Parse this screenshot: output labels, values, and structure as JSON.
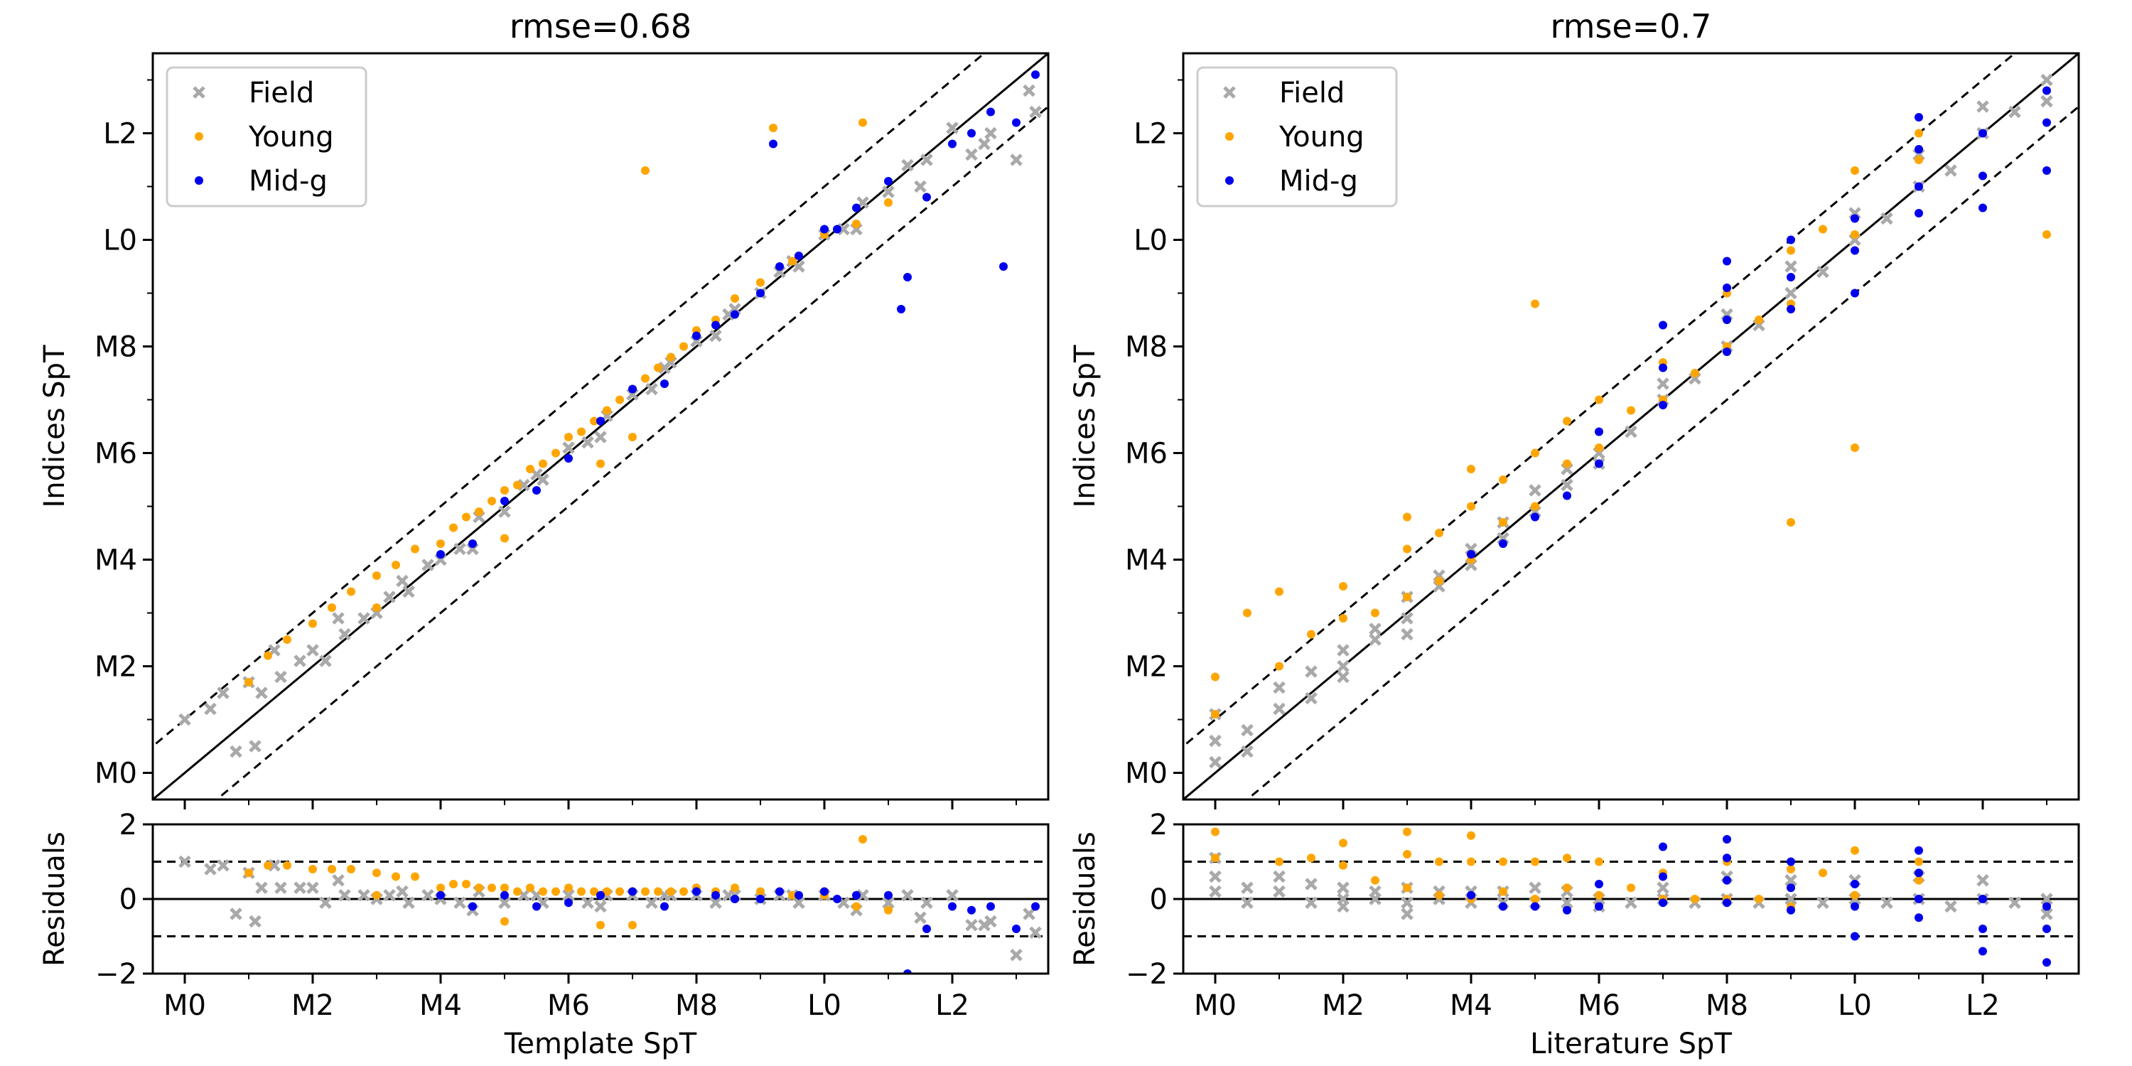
{
  "chart_data": [
    {
      "type": "scatter",
      "title": "rmse=0.68",
      "xlabel": "Template SpT",
      "ylabel": "Indices SpT",
      "residual_ylabel": "Residuals",
      "spt_min": -0.5,
      "spt_max": 13.5,
      "xlim": [
        -0.5,
        13.5
      ],
      "ylim": [
        -0.5,
        13.5
      ],
      "residual_ylim": [
        -2,
        2
      ],
      "ticks": [
        0,
        2,
        4,
        6,
        8,
        10,
        12
      ],
      "tick_labels": [
        "M0",
        "M2",
        "M4",
        "M6",
        "M8",
        "L0",
        "L2"
      ],
      "residual_ticks": [
        -2,
        0,
        2
      ],
      "residual_tick_labels": [
        "−2",
        "0",
        "2"
      ],
      "one_to_one_line": true,
      "band": 1,
      "legend": [
        "Field",
        "Young",
        "Mid-g"
      ],
      "legend_position": "top-left",
      "series": [
        {
          "name": "Field",
          "marker": "x",
          "color": "#a9a9a9",
          "x": [
            0.0,
            0.4,
            0.8,
            1.0,
            1.2,
            1.5,
            1.8,
            2.0,
            2.2,
            2.5,
            2.8,
            3.0,
            3.2,
            3.5,
            3.8,
            4.0,
            4.3,
            4.6,
            5.0,
            5.3,
            5.6,
            6.0,
            6.3,
            6.6,
            7.0,
            7.3,
            7.6,
            8.0,
            8.3,
            8.6,
            9.0,
            9.3,
            9.6,
            10.0,
            10.3,
            10.6,
            11.0,
            11.3,
            11.6,
            12.0,
            12.3,
            12.6,
            13.0,
            13.3,
            0.6,
            1.1,
            1.4,
            2.4,
            3.4,
            4.5,
            5.5,
            6.5,
            7.5,
            8.5,
            9.5,
            10.5,
            11.5,
            12.5,
            13.2
          ],
          "y": [
            1.0,
            1.2,
            0.4,
            1.7,
            1.5,
            1.8,
            2.1,
            2.3,
            2.1,
            2.6,
            2.9,
            3.0,
            3.3,
            3.4,
            3.9,
            4.0,
            4.2,
            4.8,
            4.9,
            5.4,
            5.5,
            6.1,
            6.2,
            6.7,
            7.1,
            7.2,
            7.7,
            8.1,
            8.2,
            8.7,
            9.0,
            9.4,
            9.5,
            10.1,
            10.2,
            10.7,
            10.9,
            11.4,
            11.5,
            12.1,
            11.6,
            12.0,
            11.5,
            12.4,
            1.5,
            0.5,
            2.3,
            2.9,
            3.6,
            4.2,
            5.6,
            6.3,
            7.6,
            8.6,
            9.6,
            10.2,
            11.0,
            11.8,
            12.8
          ]
        },
        {
          "name": "Young",
          "marker": "o",
          "color": "#ffa500",
          "x": [
            1.0,
            1.3,
            1.6,
            2.0,
            2.3,
            2.6,
            3.0,
            3.3,
            3.6,
            4.0,
            4.2,
            4.4,
            4.6,
            4.8,
            5.0,
            5.2,
            5.4,
            5.6,
            5.8,
            6.0,
            6.2,
            6.4,
            6.6,
            6.8,
            7.0,
            7.2,
            7.4,
            7.6,
            7.8,
            8.0,
            8.3,
            8.6,
            9.0,
            9.5,
            10.0,
            10.5,
            11.0,
            3.0,
            5.0,
            7.0,
            9.2,
            10.6,
            7.2,
            6.5
          ],
          "y": [
            1.7,
            2.2,
            2.5,
            2.8,
            3.1,
            3.4,
            3.7,
            3.9,
            4.2,
            4.3,
            4.6,
            4.8,
            4.9,
            5.1,
            5.3,
            5.4,
            5.7,
            5.8,
            6.0,
            6.3,
            6.4,
            6.6,
            6.8,
            7.0,
            7.2,
            7.4,
            7.6,
            7.8,
            8.0,
            8.3,
            8.5,
            8.9,
            9.2,
            9.6,
            10.1,
            10.3,
            10.7,
            3.1,
            4.4,
            6.3,
            12.1,
            12.2,
            11.3,
            5.8
          ]
        },
        {
          "name": "Mid-g",
          "marker": "o",
          "color": "#0000ee",
          "x": [
            4.0,
            4.5,
            5.0,
            5.5,
            6.0,
            6.5,
            7.0,
            7.5,
            8.0,
            8.3,
            8.6,
            9.0,
            9.3,
            9.6,
            10.0,
            10.5,
            11.0,
            11.3,
            11.6,
            12.0,
            12.3,
            12.6,
            13.0,
            13.3,
            11.2,
            12.8,
            9.2,
            10.2
          ],
          "y": [
            4.1,
            4.3,
            5.1,
            5.3,
            5.9,
            6.6,
            7.2,
            7.3,
            8.2,
            8.4,
            8.6,
            9.0,
            9.5,
            9.7,
            10.2,
            10.6,
            11.1,
            9.3,
            10.8,
            11.8,
            12.0,
            12.4,
            12.2,
            13.1,
            8.7,
            9.5,
            11.8,
            10.2
          ]
        }
      ]
    },
    {
      "type": "scatter",
      "title": "rmse=0.7",
      "xlabel": "Literature SpT",
      "ylabel": "Indices SpT",
      "residual_ylabel": "Residuals",
      "spt_min": -0.5,
      "spt_max": 13.5,
      "xlim": [
        -0.5,
        13.5
      ],
      "ylim": [
        -0.5,
        13.5
      ],
      "residual_ylim": [
        -2,
        2
      ],
      "ticks": [
        0,
        2,
        4,
        6,
        8,
        10,
        12
      ],
      "tick_labels": [
        "M0",
        "M2",
        "M4",
        "M6",
        "M8",
        "L0",
        "L2"
      ],
      "residual_ticks": [
        -2,
        0,
        2
      ],
      "residual_tick_labels": [
        "−2",
        "0",
        "2"
      ],
      "one_to_one_line": true,
      "band": 1,
      "legend": [
        "Field",
        "Young",
        "Mid-g"
      ],
      "legend_position": "top-left",
      "series": [
        {
          "name": "Field",
          "marker": "x",
          "color": "#a9a9a9",
          "x": [
            0,
            0,
            0,
            0.5,
            0.5,
            1,
            1,
            1.5,
            1.5,
            2,
            2,
            2,
            2.5,
            2.5,
            3,
            3,
            3,
            3.5,
            3.5,
            4,
            4,
            4.5,
            4.5,
            5,
            5,
            5.5,
            5.5,
            6,
            6,
            6.5,
            7,
            7,
            7.5,
            8,
            8,
            8.5,
            9,
            9,
            9.5,
            10,
            10,
            10.5,
            11,
            11,
            11.5,
            12,
            12,
            12.5,
            13,
            13
          ],
          "y": [
            0.2,
            0.6,
            1.1,
            0.8,
            0.4,
            1.2,
            1.6,
            1.4,
            1.9,
            2.0,
            2.3,
            1.8,
            2.5,
            2.7,
            2.9,
            3.3,
            2.6,
            3.5,
            3.7,
            3.9,
            4.2,
            4.4,
            4.7,
            4.9,
            5.3,
            5.4,
            5.7,
            6.0,
            5.8,
            6.4,
            7.0,
            7.3,
            7.4,
            8.0,
            8.6,
            8.4,
            9.0,
            9.5,
            9.4,
            10.0,
            10.5,
            10.4,
            11.0,
            11.6,
            11.3,
            12.0,
            12.5,
            12.4,
            13.0,
            12.6
          ]
        },
        {
          "name": "Young",
          "marker": "o",
          "color": "#ffa500",
          "x": [
            0,
            0,
            0.5,
            1,
            1,
            1.5,
            2,
            2,
            2.5,
            3,
            3,
            3,
            3.5,
            3.5,
            4,
            4,
            4,
            4.5,
            4.5,
            5,
            5,
            5.5,
            5.5,
            6,
            6,
            6.5,
            7,
            7,
            7.5,
            8,
            8,
            8.5,
            9,
            9,
            9,
            9.5,
            10,
            10,
            11,
            11,
            13,
            5,
            10
          ],
          "y": [
            1.1,
            1.8,
            3.0,
            2.0,
            3.4,
            2.6,
            2.9,
            3.5,
            3.0,
            3.3,
            4.2,
            4.8,
            3.6,
            4.5,
            4.0,
            5.0,
            5.7,
            4.7,
            5.5,
            5.0,
            6.0,
            5.8,
            6.6,
            6.1,
            7.0,
            6.8,
            7.0,
            7.7,
            7.5,
            8.0,
            9.0,
            8.5,
            8.8,
            9.8,
            4.7,
            10.2,
            10.1,
            11.3,
            11.5,
            12.0,
            10.1,
            8.8,
            6.1
          ]
        },
        {
          "name": "Mid-g",
          "marker": "o",
          "color": "#0000ee",
          "x": [
            4,
            4.5,
            5,
            5.5,
            6,
            6,
            7,
            7,
            7,
            8,
            8,
            8,
            8,
            9,
            9,
            9,
            10,
            10,
            10,
            11,
            11,
            11,
            11,
            12,
            12,
            12,
            13,
            13,
            13
          ],
          "y": [
            4.1,
            4.3,
            4.8,
            5.2,
            5.8,
            6.4,
            6.9,
            7.6,
            8.4,
            7.9,
            8.5,
            9.1,
            9.6,
            8.7,
            9.3,
            10.0,
            9.0,
            9.8,
            10.4,
            10.5,
            11.0,
            11.7,
            12.3,
            10.6,
            11.2,
            12.0,
            11.3,
            12.2,
            12.8
          ]
        }
      ]
    }
  ]
}
